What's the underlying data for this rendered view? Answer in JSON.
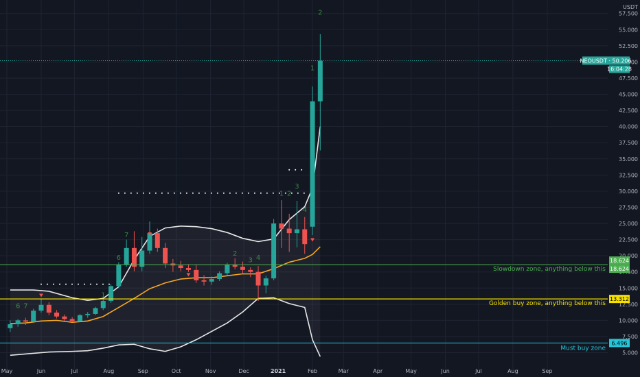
{
  "symbol": "NEOUSDT",
  "quote": "USDT",
  "colors": {
    "background": "#131722",
    "grid": "#1f2433",
    "up": "#26a69a",
    "down": "#ef5350",
    "slowdown": "#4caf50",
    "golden": "#f5e000",
    "must": "#26c6da",
    "ema": "#f5a623",
    "bands": "#e8e8e8",
    "axis_text": "#b2b5be"
  },
  "chart_data": {
    "type": "candlestick",
    "price_label": "50.206",
    "countdown": "16:04:28",
    "y_ticks": [
      "5.000",
      "7.500",
      "10.000",
      "12.500",
      "15.000",
      "17.500",
      "20.000",
      "22.500",
      "25.000",
      "27.500",
      "30.000",
      "32.500",
      "35.000",
      "37.500",
      "40.000",
      "42.500",
      "45.000",
      "47.500",
      "50.000",
      "52.500",
      "55.000",
      "57.500"
    ],
    "x_ticks": [
      {
        "label": "May",
        "date": "2020-05"
      },
      {
        "label": "Jun",
        "date": "2020-06"
      },
      {
        "label": "Jul",
        "date": "2020-07"
      },
      {
        "label": "Aug",
        "date": "2020-08"
      },
      {
        "label": "Sep",
        "date": "2020-09"
      },
      {
        "label": "Oct",
        "date": "2020-10"
      },
      {
        "label": "Nov",
        "date": "2020-11"
      },
      {
        "label": "Dec",
        "date": "2020-12"
      },
      {
        "label": "2021",
        "date": "2021-01"
      },
      {
        "label": "Feb",
        "date": "2021-02"
      },
      {
        "label": "Mar",
        "date": "2021-03"
      },
      {
        "label": "Apr",
        "date": "2021-04"
      },
      {
        "label": "May",
        "date": "2021-05"
      },
      {
        "label": "Jun",
        "date": "2021-06"
      },
      {
        "label": "Jul",
        "date": "2021-07"
      },
      {
        "label": "Aug",
        "date": "2021-08"
      },
      {
        "label": "Sep",
        "date": "2021-09"
      }
    ],
    "ylim": [
      5,
      57.5
    ],
    "levels": [
      {
        "name": "slowdown",
        "price": 18.624,
        "label": "18.624",
        "zone_text": "Slowdown zone, anything below this"
      },
      {
        "name": "golden",
        "price": 13.312,
        "label": "13.312",
        "zone_text": "Golden buy zone, anything below this"
      },
      {
        "name": "must",
        "price": 6.496,
        "label": "6.496",
        "zone_text": "Must buy zone"
      }
    ],
    "candles": [
      {
        "date": "2020-05-04",
        "o": 8.8,
        "h": 10.0,
        "l": 8.2,
        "c": 9.4
      },
      {
        "date": "2020-05-11",
        "o": 9.4,
        "h": 10.2,
        "l": 9.0,
        "c": 10.0
      },
      {
        "date": "2020-05-18",
        "o": 10.0,
        "h": 10.4,
        "l": 9.3,
        "c": 9.8
      },
      {
        "date": "2020-05-25",
        "o": 9.8,
        "h": 11.8,
        "l": 9.6,
        "c": 11.5
      },
      {
        "date": "2020-06-01",
        "o": 11.5,
        "h": 13.4,
        "l": 11.2,
        "c": 12.4
      },
      {
        "date": "2020-06-08",
        "o": 12.4,
        "h": 12.8,
        "l": 10.8,
        "c": 11.2
      },
      {
        "date": "2020-06-15",
        "o": 11.2,
        "h": 11.6,
        "l": 10.3,
        "c": 10.6
      },
      {
        "date": "2020-06-22",
        "o": 10.6,
        "h": 10.9,
        "l": 9.9,
        "c": 10.2
      },
      {
        "date": "2020-06-29",
        "o": 10.2,
        "h": 10.5,
        "l": 9.7,
        "c": 9.9
      },
      {
        "date": "2020-07-06",
        "o": 9.9,
        "h": 11.0,
        "l": 9.8,
        "c": 10.8
      },
      {
        "date": "2020-07-13",
        "o": 10.8,
        "h": 11.3,
        "l": 10.4,
        "c": 11.0
      },
      {
        "date": "2020-07-20",
        "o": 11.0,
        "h": 12.1,
        "l": 10.8,
        "c": 11.9
      },
      {
        "date": "2020-07-27",
        "o": 11.9,
        "h": 13.2,
        "l": 11.6,
        "c": 13.0
      },
      {
        "date": "2020-08-03",
        "o": 13.0,
        "h": 15.6,
        "l": 12.7,
        "c": 15.3
      },
      {
        "date": "2020-08-10",
        "o": 15.3,
        "h": 19.0,
        "l": 15.0,
        "c": 18.6
      },
      {
        "date": "2020-08-17",
        "o": 18.6,
        "h": 22.5,
        "l": 18.3,
        "c": 21.2
      },
      {
        "date": "2020-08-24",
        "o": 21.2,
        "h": 23.8,
        "l": 17.6,
        "c": 18.3
      },
      {
        "date": "2020-08-31",
        "o": 18.3,
        "h": 22.9,
        "l": 17.6,
        "c": 20.8
      },
      {
        "date": "2020-09-07",
        "o": 20.8,
        "h": 25.3,
        "l": 20.3,
        "c": 23.5
      },
      {
        "date": "2020-09-14",
        "o": 23.5,
        "h": 24.2,
        "l": 20.6,
        "c": 21.2
      },
      {
        "date": "2020-09-21",
        "o": 21.2,
        "h": 22.0,
        "l": 18.1,
        "c": 18.8
      },
      {
        "date": "2020-09-28",
        "o": 18.8,
        "h": 19.5,
        "l": 17.5,
        "c": 18.5
      },
      {
        "date": "2020-10-05",
        "o": 18.5,
        "h": 19.2,
        "l": 17.6,
        "c": 18.1
      },
      {
        "date": "2020-10-12",
        "o": 18.1,
        "h": 18.7,
        "l": 17.5,
        "c": 17.8
      },
      {
        "date": "2020-10-19",
        "o": 17.8,
        "h": 18.6,
        "l": 15.8,
        "c": 16.2
      },
      {
        "date": "2020-10-26",
        "o": 16.2,
        "h": 17.0,
        "l": 15.4,
        "c": 16.0
      },
      {
        "date": "2020-11-02",
        "o": 16.0,
        "h": 16.8,
        "l": 15.5,
        "c": 16.4
      },
      {
        "date": "2020-11-09",
        "o": 16.4,
        "h": 17.6,
        "l": 16.1,
        "c": 17.3
      },
      {
        "date": "2020-11-16",
        "o": 17.3,
        "h": 18.9,
        "l": 17.0,
        "c": 18.6
      },
      {
        "date": "2020-11-23",
        "o": 18.6,
        "h": 19.6,
        "l": 17.9,
        "c": 18.3
      },
      {
        "date": "2020-11-30",
        "o": 18.3,
        "h": 19.1,
        "l": 17.3,
        "c": 17.8
      },
      {
        "date": "2020-12-07",
        "o": 17.8,
        "h": 18.2,
        "l": 16.7,
        "c": 17.5
      },
      {
        "date": "2020-12-14",
        "o": 17.5,
        "h": 18.4,
        "l": 13.0,
        "c": 15.4
      },
      {
        "date": "2020-12-21",
        "o": 15.4,
        "h": 16.9,
        "l": 14.2,
        "c": 16.5
      },
      {
        "date": "2020-12-28",
        "o": 16.5,
        "h": 25.7,
        "l": 16.2,
        "c": 25.0
      },
      {
        "date": "2021-01-04",
        "o": 25.0,
        "h": 28.6,
        "l": 21.2,
        "c": 24.2
      },
      {
        "date": "2021-01-11",
        "o": 24.2,
        "h": 26.5,
        "l": 20.6,
        "c": 23.5
      },
      {
        "date": "2021-01-18",
        "o": 23.5,
        "h": 28.5,
        "l": 21.3,
        "c": 24.1
      },
      {
        "date": "2021-01-25",
        "o": 24.1,
        "h": 26.0,
        "l": 20.3,
        "c": 21.8
      },
      {
        "date": "2021-02-01",
        "o": 24.5,
        "h": 46.2,
        "l": 23.2,
        "c": 43.9
      },
      {
        "date": "2021-02-08",
        "o": 43.9,
        "h": 54.3,
        "l": 36.3,
        "c": 50.2
      }
    ],
    "ema": [
      {
        "date": "2020-05-04",
        "v": 9.5
      },
      {
        "date": "2020-05-18",
        "v": 9.6
      },
      {
        "date": "2020-06-01",
        "v": 9.9
      },
      {
        "date": "2020-06-15",
        "v": 10.0
      },
      {
        "date": "2020-06-29",
        "v": 9.7
      },
      {
        "date": "2020-07-13",
        "v": 9.9
      },
      {
        "date": "2020-07-27",
        "v": 10.6
      },
      {
        "date": "2020-08-10",
        "v": 12.0
      },
      {
        "date": "2020-08-24",
        "v": 13.4
      },
      {
        "date": "2020-09-07",
        "v": 14.9
      },
      {
        "date": "2020-09-21",
        "v": 15.8
      },
      {
        "date": "2020-10-05",
        "v": 16.4
      },
      {
        "date": "2020-10-19",
        "v": 16.6
      },
      {
        "date": "2020-11-02",
        "v": 16.6
      },
      {
        "date": "2020-11-16",
        "v": 16.9
      },
      {
        "date": "2020-11-30",
        "v": 17.2
      },
      {
        "date": "2020-12-14",
        "v": 17.2
      },
      {
        "date": "2020-12-28",
        "v": 18.0
      },
      {
        "date": "2021-01-11",
        "v": 19.0
      },
      {
        "date": "2021-01-25",
        "v": 19.6
      },
      {
        "date": "2021-02-01",
        "v": 20.2
      },
      {
        "date": "2021-02-08",
        "v": 21.4
      }
    ],
    "bb_upper": [
      {
        "date": "2020-05-04",
        "v": 14.7
      },
      {
        "date": "2020-05-25",
        "v": 14.7
      },
      {
        "date": "2020-06-08",
        "v": 14.5
      },
      {
        "date": "2020-06-29",
        "v": 13.5
      },
      {
        "date": "2020-07-13",
        "v": 13.1
      },
      {
        "date": "2020-07-27",
        "v": 13.4
      },
      {
        "date": "2020-08-10",
        "v": 15.2
      },
      {
        "date": "2020-08-24",
        "v": 19.4
      },
      {
        "date": "2020-09-07",
        "v": 23.0
      },
      {
        "date": "2020-09-21",
        "v": 24.3
      },
      {
        "date": "2020-10-05",
        "v": 24.6
      },
      {
        "date": "2020-10-19",
        "v": 24.5
      },
      {
        "date": "2020-11-02",
        "v": 24.2
      },
      {
        "date": "2020-11-16",
        "v": 23.6
      },
      {
        "date": "2020-11-30",
        "v": 22.7
      },
      {
        "date": "2020-12-14",
        "v": 22.2
      },
      {
        "date": "2020-12-28",
        "v": 22.6
      },
      {
        "date": "2021-01-11",
        "v": 25.6
      },
      {
        "date": "2021-01-25",
        "v": 27.6
      },
      {
        "date": "2021-02-01",
        "v": 30.5
      },
      {
        "date": "2021-02-08",
        "v": 40.0
      }
    ],
    "bb_lower": [
      {
        "date": "2020-05-04",
        "v": 4.6
      },
      {
        "date": "2020-05-25",
        "v": 4.9
      },
      {
        "date": "2020-06-08",
        "v": 5.1
      },
      {
        "date": "2020-06-29",
        "v": 5.2
      },
      {
        "date": "2020-07-13",
        "v": 5.3
      },
      {
        "date": "2020-07-27",
        "v": 5.7
      },
      {
        "date": "2020-08-10",
        "v": 6.2
      },
      {
        "date": "2020-08-24",
        "v": 6.3
      },
      {
        "date": "2020-09-07",
        "v": 5.6
      },
      {
        "date": "2020-09-21",
        "v": 5.2
      },
      {
        "date": "2020-10-05",
        "v": 5.9
      },
      {
        "date": "2020-10-19",
        "v": 7.0
      },
      {
        "date": "2020-11-02",
        "v": 8.3
      },
      {
        "date": "2020-11-16",
        "v": 9.6
      },
      {
        "date": "2020-11-30",
        "v": 11.3
      },
      {
        "date": "2020-12-14",
        "v": 13.4
      },
      {
        "date": "2020-12-28",
        "v": 13.5
      },
      {
        "date": "2021-01-11",
        "v": 12.6
      },
      {
        "date": "2021-01-25",
        "v": 12.0
      },
      {
        "date": "2021-02-01",
        "v": 7.0
      },
      {
        "date": "2021-02-08",
        "v": 4.4
      }
    ],
    "td_counts": [
      {
        "date": "2020-05-11",
        "price": 11.9,
        "text": "6",
        "color": "#4caf50"
      },
      {
        "date": "2020-05-18",
        "price": 11.9,
        "text": "7",
        "color": "#4caf50"
      },
      {
        "date": "2020-07-27",
        "price": 13.6,
        "text": "1",
        "color": "#4caf50"
      },
      {
        "date": "2020-08-10",
        "price": 19.4,
        "text": "6",
        "color": "#4caf50"
      },
      {
        "date": "2020-08-17",
        "price": 22.9,
        "text": "7",
        "color": "#4caf50"
      },
      {
        "date": "2020-11-23",
        "price": 20.0,
        "text": "2",
        "color": "#4caf50"
      },
      {
        "date": "2020-12-07",
        "price": 19.0,
        "text": "3",
        "color": "#4caf50"
      },
      {
        "date": "2020-12-14",
        "price": 19.4,
        "text": "4",
        "color": "#4caf50"
      },
      {
        "date": "2021-01-04",
        "price": 29.3,
        "text": "1",
        "color": "#4caf50"
      },
      {
        "date": "2021-01-11",
        "price": 29.3,
        "text": "2",
        "color": "#4caf50"
      },
      {
        "date": "2021-01-18",
        "price": 30.4,
        "text": "3",
        "color": "#4caf50"
      },
      {
        "date": "2021-01-25",
        "price": 26.8,
        "text": "4",
        "color": "#4caf50"
      },
      {
        "date": "2021-02-01",
        "price": 48.7,
        "text": "1",
        "color": "#4caf50"
      },
      {
        "date": "2021-02-08",
        "price": 57.3,
        "text": "2",
        "color": "#4caf50"
      }
    ]
  }
}
